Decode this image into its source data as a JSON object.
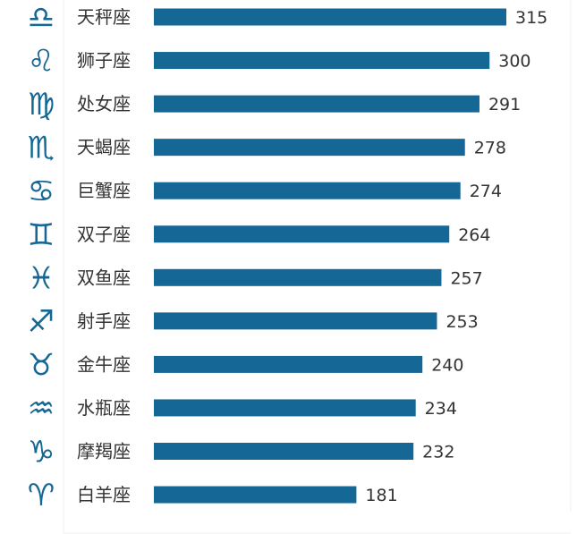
{
  "chart_data": {
    "type": "bar",
    "orientation": "horizontal",
    "title": "",
    "xlabel": "",
    "ylabel": "",
    "xlim": [
      0,
      330
    ],
    "grid": false,
    "legend": "none",
    "bar_color": "#156795",
    "icon_color": "#156795",
    "categories": [
      "天秤座",
      "狮子座",
      "处女座",
      "天蝎座",
      "巨蟹座",
      "双子座",
      "双鱼座",
      "射手座",
      "金牛座",
      "水瓶座",
      "摩羯座",
      "白羊座"
    ],
    "values": [
      315,
      300,
      291,
      278,
      274,
      264,
      257,
      253,
      240,
      234,
      232,
      181
    ],
    "icons": [
      "libra-icon",
      "leo-icon",
      "virgo-icon",
      "scorpio-icon",
      "cancer-icon",
      "gemini-icon",
      "pisces-icon",
      "sagittarius-icon",
      "taurus-icon",
      "aquarius-icon",
      "capricorn-icon",
      "aries-icon"
    ]
  }
}
